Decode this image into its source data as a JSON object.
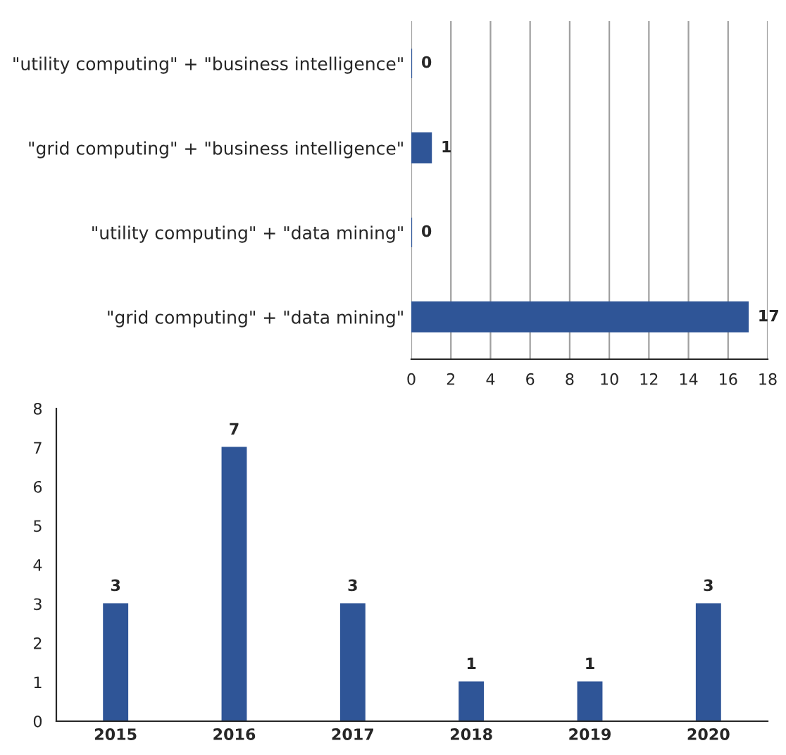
{
  "chart_data": [
    {
      "type": "bar",
      "orientation": "horizontal",
      "categories": [
        "\"utility computing\" + \"business intelligence\"",
        "\"grid computing\" + \"business intelligence\"",
        "\"utility computing\" + \"data mining\"",
        "\"grid computing\" + \"data mining\""
      ],
      "values": [
        0,
        1,
        0,
        17
      ],
      "color": "#2f5597",
      "xlim": [
        0,
        18
      ],
      "xticks": [
        0,
        2,
        4,
        6,
        8,
        10,
        12,
        14,
        16,
        18
      ],
      "grid": "x",
      "data_labels": true
    },
    {
      "type": "bar",
      "categories": [
        "2015",
        "2016",
        "2017",
        "2018",
        "2019",
        "2020"
      ],
      "values": [
        3,
        7,
        3,
        1,
        1,
        3
      ],
      "color": "#2f5597",
      "ylim": [
        0,
        8
      ],
      "yticks": [
        0,
        1,
        2,
        3,
        4,
        5,
        6,
        7,
        8
      ],
      "grid": false,
      "data_labels": true
    }
  ]
}
